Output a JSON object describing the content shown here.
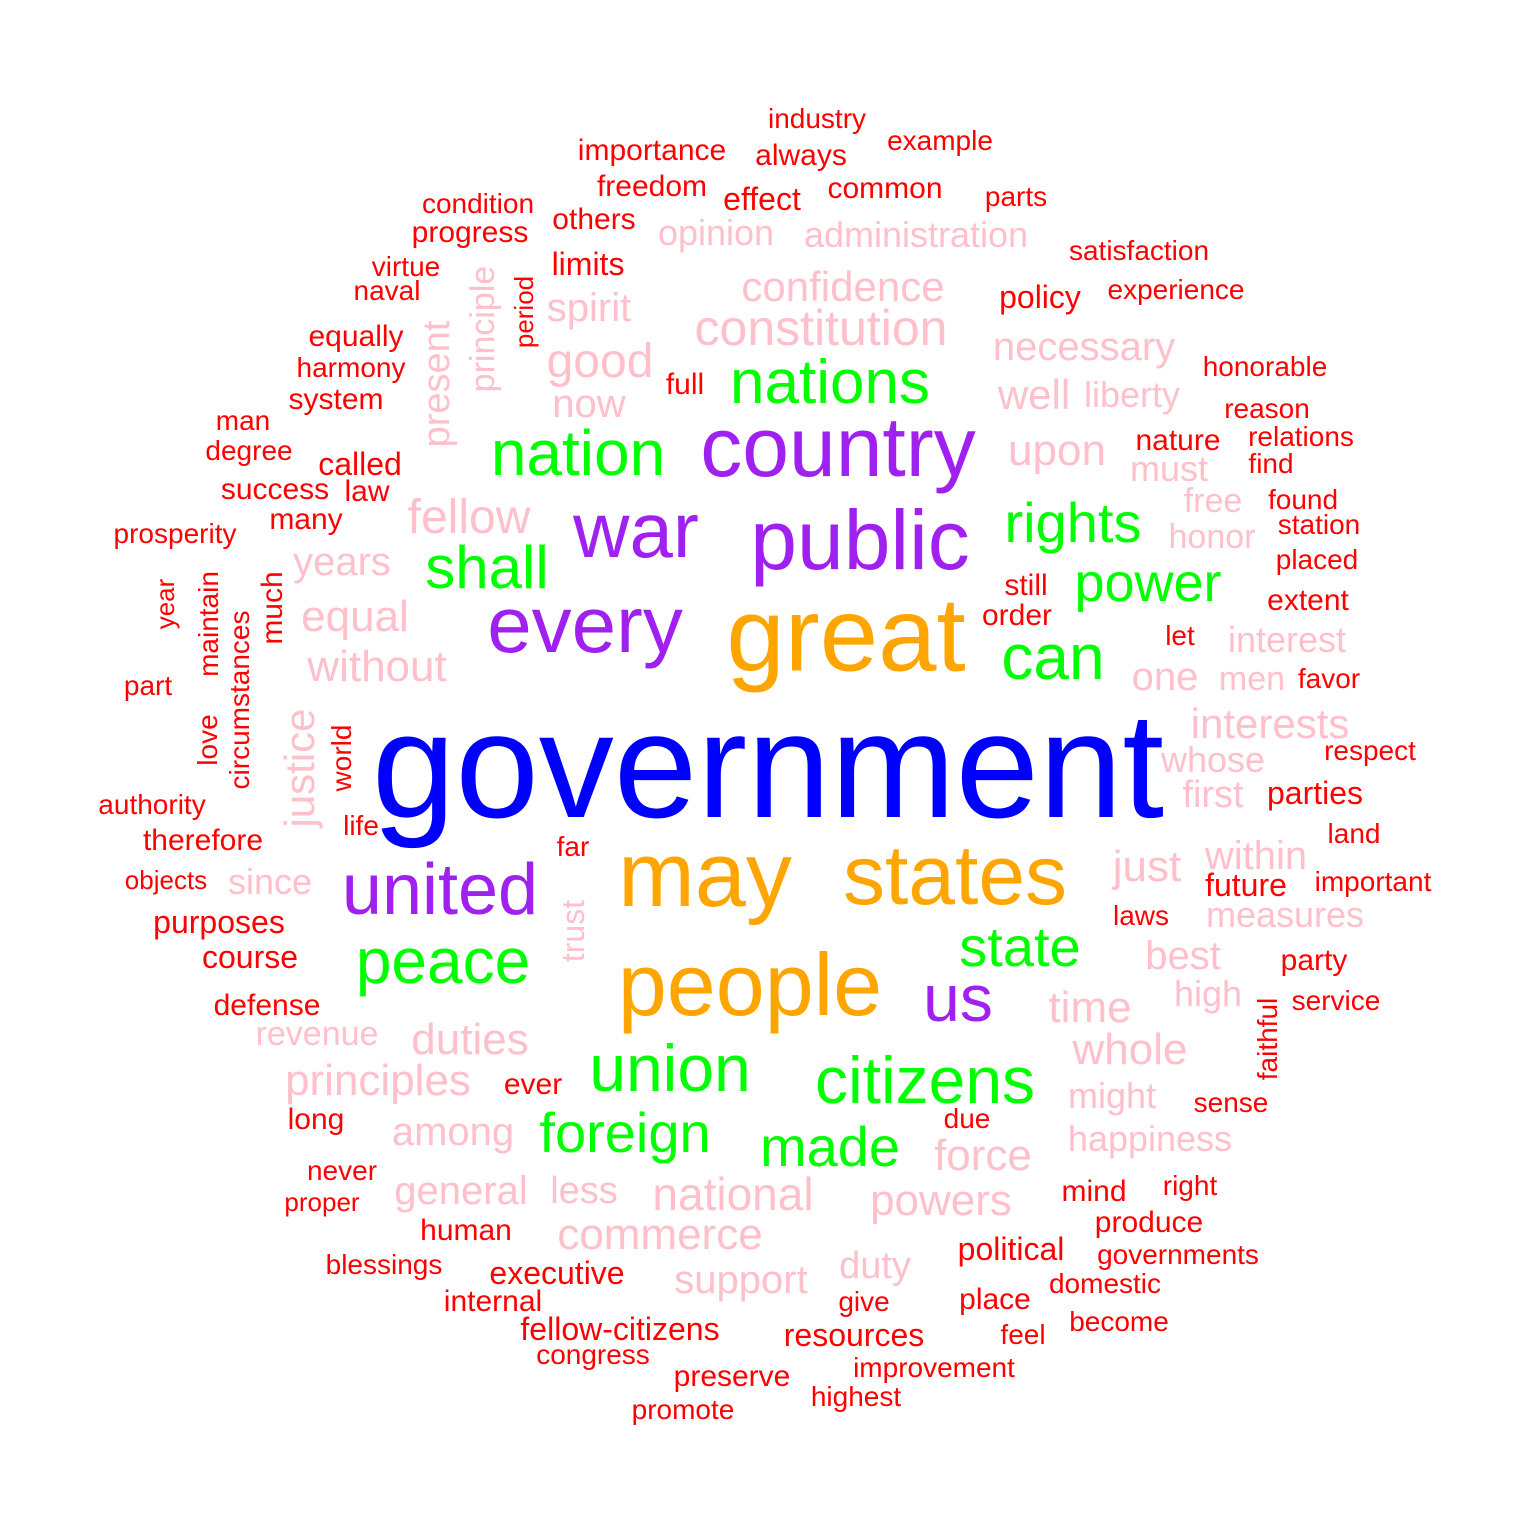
{
  "palette": {
    "t1": "#0000ff",
    "t2": "#a020f0",
    "t3": "#ffa500",
    "t4": "#00ff00",
    "t5": "#ffc0cb",
    "t6": "#ff0000"
  },
  "words": [
    {
      "text": "government",
      "tier": "t1",
      "vertical": false
    },
    {
      "text": "country",
      "tier": "t2",
      "vertical": false
    },
    {
      "text": "public",
      "tier": "t2",
      "vertical": false
    },
    {
      "text": "war",
      "tier": "t2",
      "vertical": false
    },
    {
      "text": "every",
      "tier": "t2",
      "vertical": false
    },
    {
      "text": "united",
      "tier": "t2",
      "vertical": false
    },
    {
      "text": "us",
      "tier": "t2",
      "vertical": false
    },
    {
      "text": "great",
      "tier": "t3",
      "vertical": false
    },
    {
      "text": "may",
      "tier": "t3",
      "vertical": false
    },
    {
      "text": "states",
      "tier": "t3",
      "vertical": false
    },
    {
      "text": "people",
      "tier": "t3",
      "vertical": false
    },
    {
      "text": "nations",
      "tier": "t4",
      "vertical": false
    },
    {
      "text": "nation",
      "tier": "t4",
      "vertical": false
    },
    {
      "text": "rights",
      "tier": "t4",
      "vertical": false
    },
    {
      "text": "shall",
      "tier": "t4",
      "vertical": false
    },
    {
      "text": "power",
      "tier": "t4",
      "vertical": false
    },
    {
      "text": "can",
      "tier": "t4",
      "vertical": false
    },
    {
      "text": "peace",
      "tier": "t4",
      "vertical": false
    },
    {
      "text": "state",
      "tier": "t4",
      "vertical": false
    },
    {
      "text": "union",
      "tier": "t4",
      "vertical": false
    },
    {
      "text": "citizens",
      "tier": "t4",
      "vertical": false
    },
    {
      "text": "foreign",
      "tier": "t4",
      "vertical": false
    },
    {
      "text": "made",
      "tier": "t4",
      "vertical": false
    },
    {
      "text": "confidence",
      "tier": "t5",
      "vertical": false
    },
    {
      "text": "constitution",
      "tier": "t5",
      "vertical": false
    },
    {
      "text": "administration",
      "tier": "t5",
      "vertical": false
    },
    {
      "text": "opinion",
      "tier": "t5",
      "vertical": false
    },
    {
      "text": "spirit",
      "tier": "t5",
      "vertical": false
    },
    {
      "text": "good",
      "tier": "t5",
      "vertical": false
    },
    {
      "text": "now",
      "tier": "t5",
      "vertical": false
    },
    {
      "text": "necessary",
      "tier": "t5",
      "vertical": false
    },
    {
      "text": "well",
      "tier": "t5",
      "vertical": false
    },
    {
      "text": "liberty",
      "tier": "t5",
      "vertical": false
    },
    {
      "text": "upon",
      "tier": "t5",
      "vertical": false
    },
    {
      "text": "must",
      "tier": "t5",
      "vertical": false
    },
    {
      "text": "free",
      "tier": "t5",
      "vertical": false
    },
    {
      "text": "honor",
      "tier": "t5",
      "vertical": false
    },
    {
      "text": "fellow",
      "tier": "t5",
      "vertical": false
    },
    {
      "text": "years",
      "tier": "t5",
      "vertical": false
    },
    {
      "text": "equal",
      "tier": "t5",
      "vertical": false
    },
    {
      "text": "without",
      "tier": "t5",
      "vertical": false
    },
    {
      "text": "interest",
      "tier": "t5",
      "vertical": false
    },
    {
      "text": "one",
      "tier": "t5",
      "vertical": false
    },
    {
      "text": "men",
      "tier": "t5",
      "vertical": false
    },
    {
      "text": "interests",
      "tier": "t5",
      "vertical": false
    },
    {
      "text": "whose",
      "tier": "t5",
      "vertical": false
    },
    {
      "text": "first",
      "tier": "t5",
      "vertical": false
    },
    {
      "text": "just",
      "tier": "t5",
      "vertical": false
    },
    {
      "text": "within",
      "tier": "t5",
      "vertical": false
    },
    {
      "text": "measures",
      "tier": "t5",
      "vertical": false
    },
    {
      "text": "since",
      "tier": "t5",
      "vertical": false
    },
    {
      "text": "best",
      "tier": "t5",
      "vertical": false
    },
    {
      "text": "high",
      "tier": "t5",
      "vertical": false
    },
    {
      "text": "time",
      "tier": "t5",
      "vertical": false
    },
    {
      "text": "whole",
      "tier": "t5",
      "vertical": false
    },
    {
      "text": "might",
      "tier": "t5",
      "vertical": false
    },
    {
      "text": "revenue",
      "tier": "t5",
      "vertical": false
    },
    {
      "text": "duties",
      "tier": "t5",
      "vertical": false
    },
    {
      "text": "principles",
      "tier": "t5",
      "vertical": false
    },
    {
      "text": "among",
      "tier": "t5",
      "vertical": false
    },
    {
      "text": "happiness",
      "tier": "t5",
      "vertical": false
    },
    {
      "text": "force",
      "tier": "t5",
      "vertical": false
    },
    {
      "text": "general",
      "tier": "t5",
      "vertical": false
    },
    {
      "text": "less",
      "tier": "t5",
      "vertical": false
    },
    {
      "text": "national",
      "tier": "t5",
      "vertical": false
    },
    {
      "text": "powers",
      "tier": "t5",
      "vertical": false
    },
    {
      "text": "commerce",
      "tier": "t5",
      "vertical": false
    },
    {
      "text": "support",
      "tier": "t5",
      "vertical": false
    },
    {
      "text": "duty",
      "tier": "t5",
      "vertical": false
    },
    {
      "text": "principle",
      "tier": "t5",
      "vertical": true
    },
    {
      "text": "present",
      "tier": "t5",
      "vertical": true
    },
    {
      "text": "justice",
      "tier": "t5",
      "vertical": true
    },
    {
      "text": "trust",
      "tier": "t5",
      "vertical": true
    },
    {
      "text": "industry",
      "tier": "t6",
      "vertical": false
    },
    {
      "text": "importance",
      "tier": "t6",
      "vertical": false
    },
    {
      "text": "always",
      "tier": "t6",
      "vertical": false
    },
    {
      "text": "example",
      "tier": "t6",
      "vertical": false
    },
    {
      "text": "freedom",
      "tier": "t6",
      "vertical": false
    },
    {
      "text": "effect",
      "tier": "t6",
      "vertical": false
    },
    {
      "text": "common",
      "tier": "t6",
      "vertical": false
    },
    {
      "text": "parts",
      "tier": "t6",
      "vertical": false
    },
    {
      "text": "condition",
      "tier": "t6",
      "vertical": false
    },
    {
      "text": "others",
      "tier": "t6",
      "vertical": false
    },
    {
      "text": "progress",
      "tier": "t6",
      "vertical": false
    },
    {
      "text": "satisfaction",
      "tier": "t6",
      "vertical": false
    },
    {
      "text": "virtue",
      "tier": "t6",
      "vertical": false
    },
    {
      "text": "limits",
      "tier": "t6",
      "vertical": false
    },
    {
      "text": "naval",
      "tier": "t6",
      "vertical": false
    },
    {
      "text": "policy",
      "tier": "t6",
      "vertical": false
    },
    {
      "text": "experience",
      "tier": "t6",
      "vertical": false
    },
    {
      "text": "equally",
      "tier": "t6",
      "vertical": false
    },
    {
      "text": "harmony",
      "tier": "t6",
      "vertical": false
    },
    {
      "text": "honorable",
      "tier": "t6",
      "vertical": false
    },
    {
      "text": "full",
      "tier": "t6",
      "vertical": false
    },
    {
      "text": "system",
      "tier": "t6",
      "vertical": false
    },
    {
      "text": "reason",
      "tier": "t6",
      "vertical": false
    },
    {
      "text": "man",
      "tier": "t6",
      "vertical": false
    },
    {
      "text": "nature",
      "tier": "t6",
      "vertical": false
    },
    {
      "text": "relations",
      "tier": "t6",
      "vertical": false
    },
    {
      "text": "degree",
      "tier": "t6",
      "vertical": false
    },
    {
      "text": "called",
      "tier": "t6",
      "vertical": false
    },
    {
      "text": "find",
      "tier": "t6",
      "vertical": false
    },
    {
      "text": "success",
      "tier": "t6",
      "vertical": false
    },
    {
      "text": "law",
      "tier": "t6",
      "vertical": false
    },
    {
      "text": "found",
      "tier": "t6",
      "vertical": false
    },
    {
      "text": "prosperity",
      "tier": "t6",
      "vertical": false
    },
    {
      "text": "many",
      "tier": "t6",
      "vertical": false
    },
    {
      "text": "station",
      "tier": "t6",
      "vertical": false
    },
    {
      "text": "placed",
      "tier": "t6",
      "vertical": false
    },
    {
      "text": "still",
      "tier": "t6",
      "vertical": false
    },
    {
      "text": "extent",
      "tier": "t6",
      "vertical": false
    },
    {
      "text": "order",
      "tier": "t6",
      "vertical": false
    },
    {
      "text": "let",
      "tier": "t6",
      "vertical": false
    },
    {
      "text": "part",
      "tier": "t6",
      "vertical": false
    },
    {
      "text": "favor",
      "tier": "t6",
      "vertical": false
    },
    {
      "text": "respect",
      "tier": "t6",
      "vertical": false
    },
    {
      "text": "authority",
      "tier": "t6",
      "vertical": false
    },
    {
      "text": "parties",
      "tier": "t6",
      "vertical": false
    },
    {
      "text": "life",
      "tier": "t6",
      "vertical": false
    },
    {
      "text": "therefore",
      "tier": "t6",
      "vertical": false
    },
    {
      "text": "land",
      "tier": "t6",
      "vertical": false
    },
    {
      "text": "far",
      "tier": "t6",
      "vertical": false
    },
    {
      "text": "objects",
      "tier": "t6",
      "vertical": false
    },
    {
      "text": "future",
      "tier": "t6",
      "vertical": false
    },
    {
      "text": "important",
      "tier": "t6",
      "vertical": false
    },
    {
      "text": "purposes",
      "tier": "t6",
      "vertical": false
    },
    {
      "text": "laws",
      "tier": "t6",
      "vertical": false
    },
    {
      "text": "course",
      "tier": "t6",
      "vertical": false
    },
    {
      "text": "party",
      "tier": "t6",
      "vertical": false
    },
    {
      "text": "defense",
      "tier": "t6",
      "vertical": false
    },
    {
      "text": "service",
      "tier": "t6",
      "vertical": false
    },
    {
      "text": "ever",
      "tier": "t6",
      "vertical": false
    },
    {
      "text": "sense",
      "tier": "t6",
      "vertical": false
    },
    {
      "text": "long",
      "tier": "t6",
      "vertical": false
    },
    {
      "text": "due",
      "tier": "t6",
      "vertical": false
    },
    {
      "text": "never",
      "tier": "t6",
      "vertical": false
    },
    {
      "text": "proper",
      "tier": "t6",
      "vertical": false
    },
    {
      "text": "mind",
      "tier": "t6",
      "vertical": false
    },
    {
      "text": "right",
      "tier": "t6",
      "vertical": false
    },
    {
      "text": "human",
      "tier": "t6",
      "vertical": false
    },
    {
      "text": "produce",
      "tier": "t6",
      "vertical": false
    },
    {
      "text": "political",
      "tier": "t6",
      "vertical": false
    },
    {
      "text": "governments",
      "tier": "t6",
      "vertical": false
    },
    {
      "text": "blessings",
      "tier": "t6",
      "vertical": false
    },
    {
      "text": "executive",
      "tier": "t6",
      "vertical": false
    },
    {
      "text": "domestic",
      "tier": "t6",
      "vertical": false
    },
    {
      "text": "internal",
      "tier": "t6",
      "vertical": false
    },
    {
      "text": "give",
      "tier": "t6",
      "vertical": false
    },
    {
      "text": "place",
      "tier": "t6",
      "vertical": false
    },
    {
      "text": "fellow-citizens",
      "tier": "t6",
      "vertical": false
    },
    {
      "text": "resources",
      "tier": "t6",
      "vertical": false
    },
    {
      "text": "feel",
      "tier": "t6",
      "vertical": false
    },
    {
      "text": "become",
      "tier": "t6",
      "vertical": false
    },
    {
      "text": "congress",
      "tier": "t6",
      "vertical": false
    },
    {
      "text": "improvement",
      "tier": "t6",
      "vertical": false
    },
    {
      "text": "preserve",
      "tier": "t6",
      "vertical": false
    },
    {
      "text": "highest",
      "tier": "t6",
      "vertical": false
    },
    {
      "text": "promote",
      "tier": "t6",
      "vertical": false
    },
    {
      "text": "period",
      "tier": "t6",
      "vertical": true
    },
    {
      "text": "year",
      "tier": "t6",
      "vertical": true
    },
    {
      "text": "maintain",
      "tier": "t6",
      "vertical": true
    },
    {
      "text": "circumstances",
      "tier": "t6",
      "vertical": true
    },
    {
      "text": "much",
      "tier": "t6",
      "vertical": true
    },
    {
      "text": "love",
      "tier": "t6",
      "vertical": true
    },
    {
      "text": "world",
      "tier": "t6",
      "vertical": true
    },
    {
      "text": "faithful",
      "tier": "t6",
      "vertical": true
    }
  ]
}
